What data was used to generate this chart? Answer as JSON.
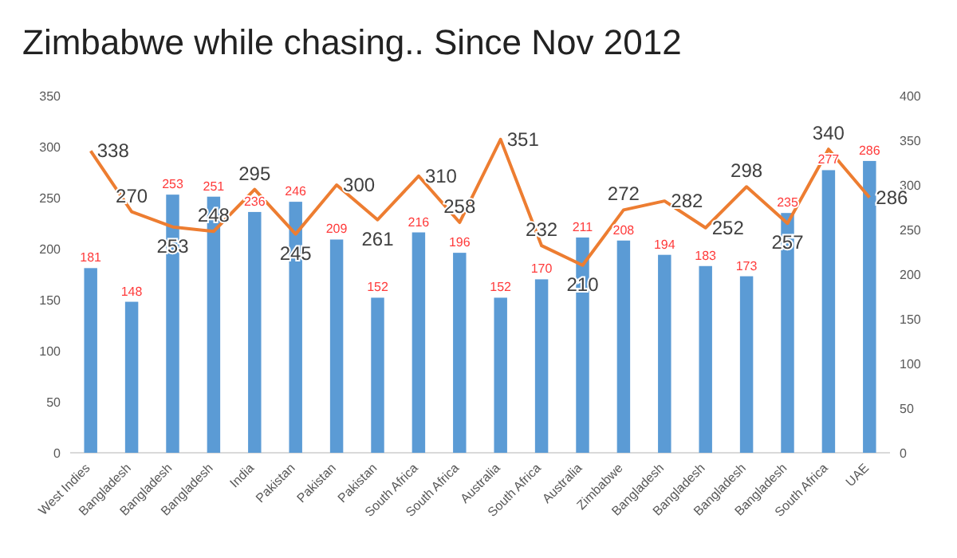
{
  "chart_data": {
    "type": "bar",
    "title": "Zimbabwe while chasing.. Since Nov 2012",
    "categories": [
      "West Indies",
      "Bangladesh",
      "Bangladesh",
      "Bangladesh",
      "India",
      "Pakistan",
      "Pakistan",
      "Pakistan",
      "South Africa",
      "South Africa",
      "Australia",
      "South Africa",
      "Australia",
      "Zimbabwe",
      "Bangladesh",
      "Bangladesh",
      "Bangladesh",
      "Bangladesh",
      "South Africa",
      "UAE"
    ],
    "series": [
      {
        "color": "#5b9bd5",
        "values": [
          181,
          148,
          253,
          251,
          236,
          246,
          209,
          152,
          216,
          196,
          152,
          170,
          211,
          208,
          194,
          183,
          173,
          235,
          277,
          286
        ]
      },
      {
        "type": "line",
        "axis": "y2",
        "color": "#ed7d31",
        "values": [
          338,
          270,
          253,
          248,
          295,
          245,
          300,
          261,
          310,
          258,
          351,
          232,
          210,
          272,
          282,
          252,
          298,
          257,
          340,
          286
        ]
      }
    ],
    "ylim": [
      0,
      350
    ],
    "yticks": [
      0,
      50,
      100,
      150,
      200,
      250,
      300,
      350
    ],
    "y2lim": [
      0,
      400
    ],
    "y2ticks": [
      0,
      50,
      100,
      150,
      200,
      250,
      300,
      350,
      400
    ],
    "data_labels": true,
    "grid": false,
    "marker": "none",
    "line_style": "solid"
  }
}
